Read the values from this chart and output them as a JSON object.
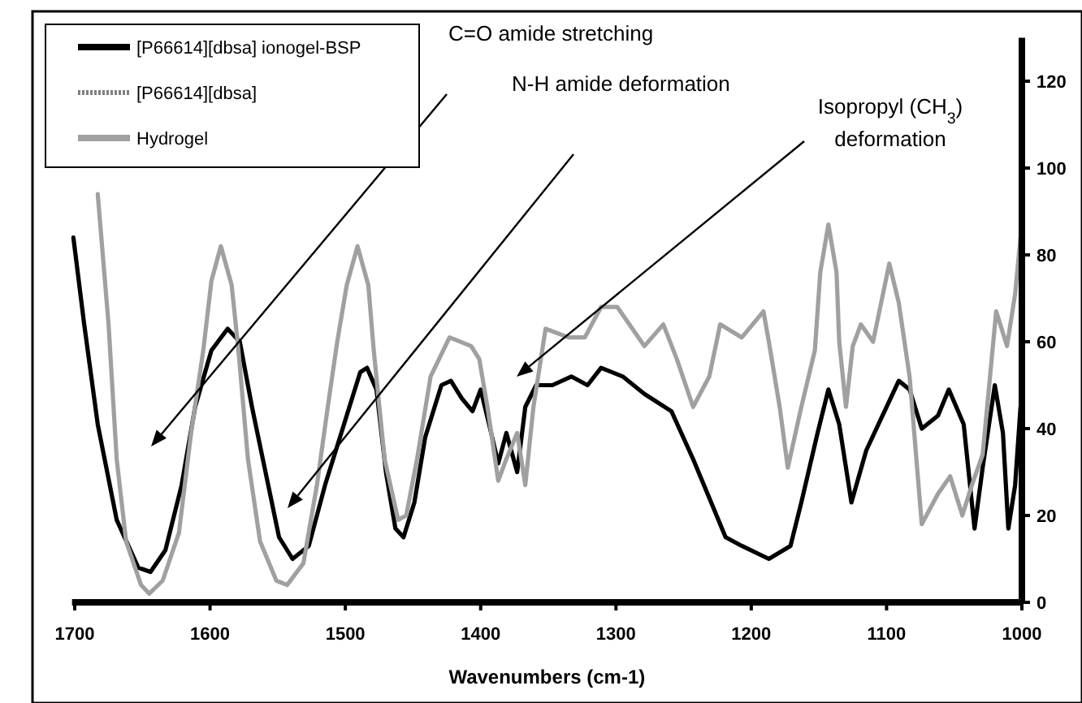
{
  "chart_data": {
    "type": "line",
    "xlabel": "Wavenumbers (cm-1)",
    "xlim": [
      1702,
      1000
    ],
    "xticks": [
      1700,
      1600,
      1500,
      1400,
      1300,
      1200,
      1100,
      1000
    ],
    "ylim": [
      0,
      130
    ],
    "yticks": [
      0,
      20,
      40,
      60,
      80,
      100,
      120
    ],
    "grid": false,
    "legend": "top left",
    "line_style": "solid",
    "marker": "none",
    "series": [
      {
        "name": "[P66614][dbsa] ionogel-BSP",
        "color": "#000000",
        "x": [
          1701,
          1693,
          1683,
          1669,
          1653,
          1644,
          1633,
          1621,
          1611,
          1599,
          1587,
          1578,
          1569,
          1557,
          1549,
          1539,
          1527,
          1515,
          1501,
          1489,
          1484,
          1477,
          1470,
          1463,
          1457,
          1449,
          1441,
          1429,
          1422,
          1414,
          1406,
          1400,
          1393,
          1387,
          1381,
          1373,
          1367,
          1359,
          1347,
          1333,
          1321,
          1311,
          1295,
          1279,
          1259,
          1243,
          1231,
          1219,
          1207,
          1187,
          1171,
          1163,
          1151,
          1143,
          1135,
          1126,
          1115,
          1103,
          1091,
          1083,
          1074,
          1062,
          1054,
          1043,
          1035,
          1029,
          1020,
          1014,
          1010,
          1005,
          1001
        ],
        "values": [
          84,
          64,
          41,
          19,
          8,
          7,
          12,
          27,
          45,
          58,
          63,
          60,
          45,
          27,
          15,
          10,
          13,
          27,
          41,
          53,
          54,
          49,
          30,
          17,
          15,
          23,
          38,
          50,
          51,
          47,
          44,
          49,
          40,
          32,
          39,
          30,
          45,
          50,
          50,
          52,
          50,
          54,
          52,
          48,
          44,
          33,
          24,
          15,
          13,
          10,
          13,
          23,
          39,
          49,
          41,
          23,
          35,
          43,
          51,
          49,
          40,
          43,
          49,
          41,
          17,
          31,
          50,
          39,
          17,
          27,
          45
        ]
      },
      {
        "name": "[P66614][dbsa]",
        "color": "#808080"
      },
      {
        "name": "Hydrogel",
        "color": "#a0a0a0",
        "x": [
          1683,
          1675,
          1669,
          1662,
          1651,
          1645,
          1635,
          1623,
          1614,
          1605,
          1599,
          1592,
          1584,
          1579,
          1572,
          1563,
          1551,
          1543,
          1531,
          1521,
          1513,
          1506,
          1499,
          1491,
          1483,
          1479,
          1471,
          1461,
          1455,
          1447,
          1437,
          1423,
          1407,
          1401,
          1395,
          1387,
          1381,
          1373,
          1367,
          1361,
          1352,
          1335,
          1323,
          1311,
          1299,
          1279,
          1265,
          1255,
          1243,
          1231,
          1223,
          1207,
          1191,
          1187,
          1179,
          1173,
          1163,
          1153,
          1149,
          1143,
          1137,
          1135,
          1130,
          1125,
          1119,
          1110,
          1098,
          1091,
          1083,
          1074,
          1062,
          1053,
          1044,
          1037,
          1029,
          1019,
          1011,
          1005,
          1001
        ],
        "values": [
          94,
          64,
          33,
          14,
          4,
          2,
          5,
          16,
          39,
          58,
          74,
          82,
          73,
          58,
          33,
          14,
          5,
          4,
          9,
          27,
          45,
          60,
          73,
          82,
          73,
          58,
          33,
          19,
          20,
          33,
          52,
          61,
          59,
          56,
          45,
          28,
          33,
          39,
          27,
          45,
          63,
          61,
          61,
          68,
          68,
          59,
          64,
          56,
          45,
          52,
          64,
          61,
          67,
          60,
          45,
          31,
          45,
          58,
          76,
          87,
          76,
          60,
          45,
          59,
          64,
          60,
          78,
          69,
          52,
          18,
          25,
          29,
          20,
          27,
          34,
          67,
          59,
          71,
          84
        ]
      }
    ],
    "annotations": [
      "C=O amide stretching",
      "N-H amide deformation",
      "Isopropyl (CH$_{3}$) deformation"
    ]
  }
}
